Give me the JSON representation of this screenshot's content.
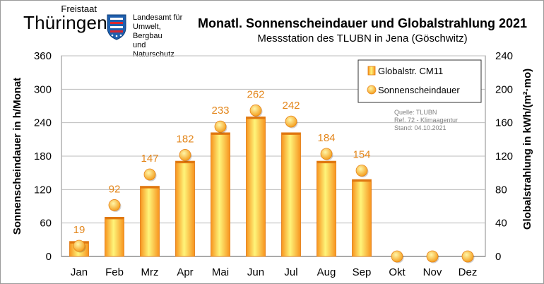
{
  "header": {
    "logo_state": "Freistaat",
    "logo_name": "Thüringen",
    "logo_org": [
      "Landesamt für",
      "Umwelt, Bergbau",
      "und Naturschutz"
    ],
    "title": "Monatl. Sonnenscheindauer und Globalstrahlung 2021",
    "subtitle": "Messstation  des TLUBN  in Jena (Göschwitz)"
  },
  "source_note": [
    "Quelle: TLUBN",
    "Ref. 72 - Klimaagentur",
    "Stand: 04.10.2021"
  ],
  "colors": {
    "bar_light": "#fef47a",
    "bar_dark": "#f7931e",
    "bar_edge": "#e07810",
    "marker_light": "#fff6a8",
    "marker_dark": "#f39a16",
    "label_color": "#e3861b"
  },
  "chart_data": {
    "type": "bar",
    "categories": [
      "Jan",
      "Feb",
      "Mrz",
      "Apr",
      "Mai",
      "Jun",
      "Jul",
      "Aug",
      "Sep",
      "Okt",
      "Nov",
      "Dez"
    ],
    "series": [
      {
        "name": "Globalstr. CM11",
        "kind": "bar",
        "axis": "right",
        "values": [
          18,
          47,
          84,
          114,
          148,
          167,
          148,
          114,
          92,
          null,
          null,
          null
        ]
      },
      {
        "name": "Sonnenscheindauer",
        "kind": "marker",
        "axis": "left",
        "values": [
          19,
          92,
          147,
          182,
          233,
          262,
          242,
          184,
          154,
          0,
          0,
          0
        ],
        "labels": [
          "19",
          "92",
          "147",
          "182",
          "233",
          "262",
          "242",
          "184",
          "154",
          "",
          "",
          ""
        ]
      }
    ],
    "ylabel": "Sonnenscheindauer  in h/Monat",
    "y2label": "Globalstrahlung  in kWh/(m²·mo)",
    "ylim": [
      0,
      360
    ],
    "yticks": [
      0,
      60,
      120,
      180,
      240,
      300,
      360
    ],
    "y2lim": [
      0,
      240
    ],
    "y2ticks": [
      0,
      40,
      80,
      120,
      160,
      200,
      240
    ],
    "grid": true,
    "legend": "top-right"
  }
}
